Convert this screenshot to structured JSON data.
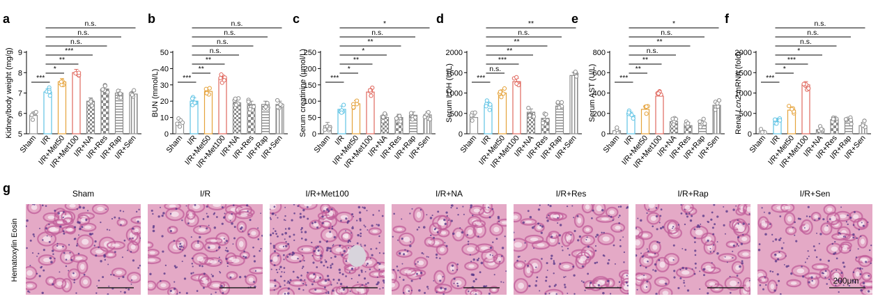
{
  "chart_data": [
    {
      "panel": "a",
      "type": "bar",
      "ylabel": "Kidney/body weight (mg/g)",
      "ylim": [
        5,
        9
      ],
      "yticks": [
        5,
        6,
        7,
        8,
        9
      ],
      "categories": [
        "Sham",
        "I/R",
        "I/R+Met50",
        "I/R+Met100",
        "I/R+NA",
        "I/R+Res",
        "I/R+Rap",
        "I/R+Sen"
      ],
      "values": [
        5.9,
        7.05,
        7.55,
        8.0,
        6.6,
        7.2,
        7.0,
        6.95
      ],
      "comparisons": [
        {
          "from": "Sham",
          "to": "I/R",
          "label": "***"
        },
        {
          "from": "I/R",
          "to": "I/R+Met50",
          "label": "*"
        },
        {
          "from": "I/R",
          "to": "I/R+Met100",
          "label": "**"
        },
        {
          "from": "I/R",
          "to": "I/R+NA",
          "label": "***"
        },
        {
          "from": "I/R",
          "to": "I/R+Res",
          "label": "n.s."
        },
        {
          "from": "I/R",
          "to": "I/R+Rap",
          "label": "n.s."
        },
        {
          "from": "I/R",
          "to": "I/R+Sen",
          "label": "n.s."
        }
      ]
    },
    {
      "panel": "b",
      "type": "bar",
      "ylabel": "BUN (mmol/L)",
      "ylim": [
        0,
        50
      ],
      "yticks": [
        0,
        10,
        20,
        30,
        40,
        50
      ],
      "categories": [
        "Sham",
        "I/R",
        "I/R+Met50",
        "I/R+Met100",
        "I/R+NA",
        "I/R+Res",
        "I/R+Rap",
        "I/R+Sen"
      ],
      "values": [
        7,
        20,
        26,
        34,
        19,
        18,
        18,
        18
      ],
      "comparisons": [
        {
          "from": "Sham",
          "to": "I/R",
          "label": "***"
        },
        {
          "from": "I/R",
          "to": "I/R+Met50",
          "label": "**"
        },
        {
          "from": "I/R",
          "to": "I/R+Met100",
          "label": "**"
        },
        {
          "from": "I/R",
          "to": "I/R+NA",
          "label": "n.s."
        },
        {
          "from": "I/R",
          "to": "I/R+Res",
          "label": "n.s."
        },
        {
          "from": "I/R",
          "to": "I/R+Rap",
          "label": "n.s."
        },
        {
          "from": "I/R",
          "to": "I/R+Sen",
          "label": "n.s."
        }
      ]
    },
    {
      "panel": "c",
      "type": "bar",
      "ylabel": "Serum creatinine (μmol/L)",
      "ylim": [
        0,
        250
      ],
      "yticks": [
        0,
        50,
        100,
        150,
        200,
        250
      ],
      "categories": [
        "Sham",
        "I/R",
        "I/R+Met50",
        "I/R+Met100",
        "I/R+NA",
        "I/R+Res",
        "I/R+Rap",
        "I/R+Sen"
      ],
      "values": [
        25,
        75,
        92,
        128,
        50,
        50,
        57,
        58
      ],
      "comparisons": [
        {
          "from": "Sham",
          "to": "I/R",
          "label": "***"
        },
        {
          "from": "I/R",
          "to": "I/R+Met50",
          "label": "*"
        },
        {
          "from": "I/R",
          "to": "I/R+Met100",
          "label": "**"
        },
        {
          "from": "I/R",
          "to": "I/R+NA",
          "label": "*"
        },
        {
          "from": "I/R",
          "to": "I/R+Res",
          "label": "**"
        },
        {
          "from": "I/R",
          "to": "I/R+Rap",
          "label": "n.s."
        },
        {
          "from": "I/R",
          "to": "I/R+Sen",
          "label": "*"
        }
      ]
    },
    {
      "panel": "d",
      "type": "bar",
      "ylabel": "Serum LDH (U/L)",
      "ylim": [
        0,
        2000
      ],
      "yticks": [
        0,
        500,
        1000,
        1500,
        2000
      ],
      "categories": [
        "Sham",
        "I/R",
        "I/R+Met50",
        "I/R+Met100",
        "I/R+NA",
        "I/R+Res",
        "I/R+Rap",
        "I/R+Sen"
      ],
      "values": [
        400,
        700,
        1000,
        1280,
        530,
        380,
        680,
        1430
      ],
      "comparisons": [
        {
          "from": "Sham",
          "to": "I/R",
          "label": "***"
        },
        {
          "from": "I/R",
          "to": "I/R+Met50",
          "label": "n.s."
        },
        {
          "from": "I/R",
          "to": "I/R+Met100",
          "label": "***"
        },
        {
          "from": "I/R",
          "to": "I/R+NA",
          "label": "**"
        },
        {
          "from": "I/R",
          "to": "I/R+Res",
          "label": "**"
        },
        {
          "from": "I/R",
          "to": "I/R+Rap",
          "label": "n.s."
        },
        {
          "from": "I/R",
          "to": "I/R+Sen",
          "label": "**"
        }
      ]
    },
    {
      "panel": "e",
      "type": "bar",
      "ylabel": "Serum AST (U/L)",
      "ylim": [
        0,
        800
      ],
      "yticks": [
        0,
        200,
        400,
        600,
        800
      ],
      "categories": [
        "Sham",
        "I/R",
        "I/R+Met50",
        "I/R+Met100",
        "I/R+NA",
        "I/R+Res",
        "I/R+Rap",
        "I/R+Sen"
      ],
      "values": [
        30,
        180,
        240,
        370,
        120,
        80,
        100,
        280
      ],
      "comparisons": [
        {
          "from": "Sham",
          "to": "I/R",
          "label": "***"
        },
        {
          "from": "I/R",
          "to": "I/R+Met50",
          "label": "**"
        },
        {
          "from": "I/R",
          "to": "I/R+Met100",
          "label": "**"
        },
        {
          "from": "I/R",
          "to": "I/R+NA",
          "label": "n.s."
        },
        {
          "from": "I/R",
          "to": "I/R+Res",
          "label": "**"
        },
        {
          "from": "I/R",
          "to": "I/R+Rap",
          "label": "n.s."
        },
        {
          "from": "I/R",
          "to": "I/R+Sen",
          "label": "*"
        }
      ]
    },
    {
      "panel": "f",
      "type": "bar",
      "ylabel": "Renal Lcn2 mRNA (fold)",
      "ylim": [
        0,
        2000
      ],
      "yticks": [
        0,
        500,
        1000,
        1500,
        2000
      ],
      "categories": [
        "Sham",
        "I/R",
        "I/R+Met50",
        "I/R+Met100",
        "I/R+NA",
        "I/R+Res",
        "I/R+Rap",
        "I/R+Sen"
      ],
      "values": [
        5,
        300,
        580,
        1200,
        100,
        350,
        330,
        200
      ],
      "comparisons": [
        {
          "from": "Sham",
          "to": "I/R",
          "label": "***"
        },
        {
          "from": "I/R",
          "to": "I/R+Met50",
          "label": "*"
        },
        {
          "from": "I/R",
          "to": "I/R+Met100",
          "label": "***"
        },
        {
          "from": "I/R",
          "to": "I/R+NA",
          "label": "*"
        },
        {
          "from": "I/R",
          "to": "I/R+Res",
          "label": "n.s."
        },
        {
          "from": "I/R",
          "to": "I/R+Rap",
          "label": "n.s."
        },
        {
          "from": "I/R",
          "to": "I/R+Sen",
          "label": "n.s."
        }
      ]
    }
  ],
  "bar_styles": [
    {
      "color": "#909090",
      "fill": "#ffffff",
      "pattern": "none"
    },
    {
      "color": "#5fc3e4",
      "fill": "#ffffff",
      "pattern": "none"
    },
    {
      "color": "#e5a23a",
      "fill": "#ffffff",
      "pattern": "none"
    },
    {
      "color": "#e0675d",
      "fill": "#ffffff",
      "pattern": "none"
    },
    {
      "color": "#8c8c8c",
      "fill": "#ffffff",
      "pattern": "checker"
    },
    {
      "color": "#8c8c8c",
      "fill": "#ffffff",
      "pattern": "checker-large"
    },
    {
      "color": "#8c8c8c",
      "fill": "#ffffff",
      "pattern": "hstripes"
    },
    {
      "color": "#8c8c8c",
      "fill": "#ffffff",
      "pattern": "vstripes"
    }
  ],
  "histology": {
    "panel": "g",
    "row_label": "Hematoxylin Eosin",
    "panels": [
      "Sham",
      "I/R",
      "I/R+Met100",
      "I/R+NA",
      "I/R+Res",
      "I/R+Rap",
      "I/R+Sen"
    ],
    "scale_label": "200μm",
    "stain_colors": {
      "background": "#e4a9c6",
      "tubule": "#c05e9a",
      "nuclei": "#5a3a8a",
      "lumen": "#f6e6ef"
    }
  }
}
